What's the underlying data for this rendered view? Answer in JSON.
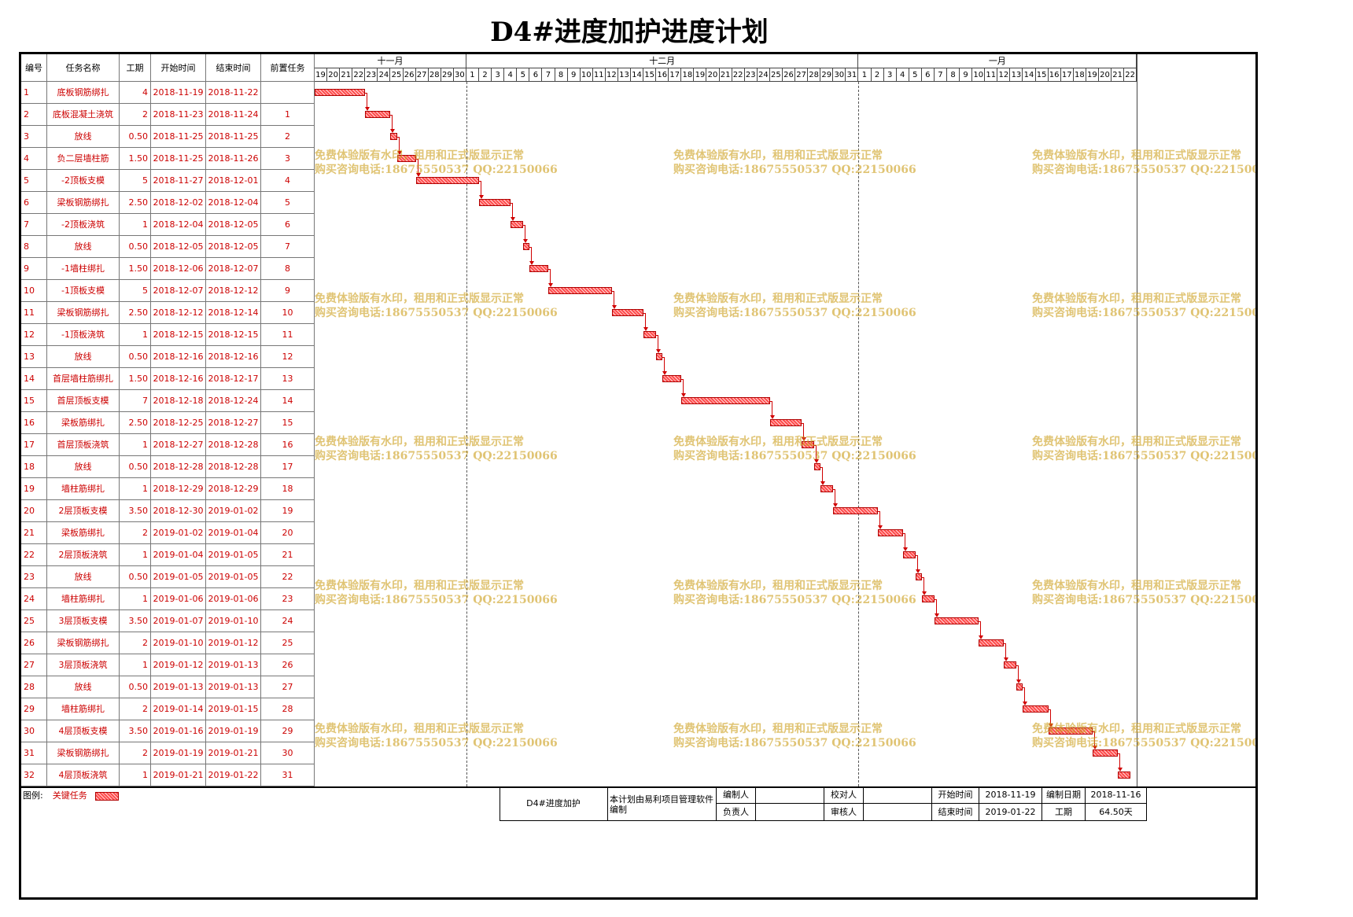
{
  "title": "D4#进度加护进度计划",
  "columns": [
    "编号",
    "任务名称",
    "工期",
    "开始时间",
    "结束时间",
    "前置任务"
  ],
  "months": [
    {
      "label": "十一月",
      "days": [
        "19",
        "20",
        "21",
        "22",
        "23",
        "24",
        "25",
        "26",
        "27",
        "28",
        "29",
        "30"
      ]
    },
    {
      "label": "十二月",
      "days": [
        "1",
        "2",
        "3",
        "4",
        "5",
        "6",
        "7",
        "8",
        "9",
        "10",
        "11",
        "12",
        "13",
        "14",
        "15",
        "16",
        "17",
        "18",
        "19",
        "20",
        "21",
        "22",
        "23",
        "24",
        "25",
        "26",
        "27",
        "28",
        "29",
        "30",
        "31"
      ]
    },
    {
      "label": "一月",
      "days": [
        "1",
        "2",
        "3",
        "4",
        "5",
        "6",
        "7",
        "8",
        "9",
        "10",
        "11",
        "12",
        "13",
        "14",
        "15",
        "16",
        "17",
        "18",
        "19",
        "20",
        "21",
        "22"
      ]
    }
  ],
  "tasks": [
    {
      "id": "1",
      "name": "底板钢筋绑扎",
      "duration": "4",
      "start": "2018-11-19",
      "end": "2018-11-22",
      "pred": ""
    },
    {
      "id": "2",
      "name": "底板混凝土浇筑",
      "duration": "2",
      "start": "2018-11-23",
      "end": "2018-11-24",
      "pred": "1"
    },
    {
      "id": "3",
      "name": "放线",
      "duration": "0.50",
      "start": "2018-11-25",
      "end": "2018-11-25",
      "pred": "2"
    },
    {
      "id": "4",
      "name": "负二层墙柱筋",
      "duration": "1.50",
      "start": "2018-11-25",
      "end": "2018-11-26",
      "pred": "3"
    },
    {
      "id": "5",
      "name": "-2顶板支模",
      "duration": "5",
      "start": "2018-11-27",
      "end": "2018-12-01",
      "pred": "4"
    },
    {
      "id": "6",
      "name": "梁板钢筋绑扎",
      "duration": "2.50",
      "start": "2018-12-02",
      "end": "2018-12-04",
      "pred": "5"
    },
    {
      "id": "7",
      "name": "-2顶板浇筑",
      "duration": "1",
      "start": "2018-12-04",
      "end": "2018-12-05",
      "pred": "6"
    },
    {
      "id": "8",
      "name": "放线",
      "duration": "0.50",
      "start": "2018-12-05",
      "end": "2018-12-05",
      "pred": "7"
    },
    {
      "id": "9",
      "name": "-1墙柱绑扎",
      "duration": "1.50",
      "start": "2018-12-06",
      "end": "2018-12-07",
      "pred": "8"
    },
    {
      "id": "10",
      "name": "-1顶板支模",
      "duration": "5",
      "start": "2018-12-07",
      "end": "2018-12-12",
      "pred": "9"
    },
    {
      "id": "11",
      "name": "梁板钢筋绑扎",
      "duration": "2.50",
      "start": "2018-12-12",
      "end": "2018-12-14",
      "pred": "10"
    },
    {
      "id": "12",
      "name": "-1顶板浇筑",
      "duration": "1",
      "start": "2018-12-15",
      "end": "2018-12-15",
      "pred": "11"
    },
    {
      "id": "13",
      "name": "放线",
      "duration": "0.50",
      "start": "2018-12-16",
      "end": "2018-12-16",
      "pred": "12"
    },
    {
      "id": "14",
      "name": "首层墙柱筋绑扎",
      "duration": "1.50",
      "start": "2018-12-16",
      "end": "2018-12-17",
      "pred": "13"
    },
    {
      "id": "15",
      "name": "首层顶板支模",
      "duration": "7",
      "start": "2018-12-18",
      "end": "2018-12-24",
      "pred": "14"
    },
    {
      "id": "16",
      "name": "梁板筋绑扎",
      "duration": "2.50",
      "start": "2018-12-25",
      "end": "2018-12-27",
      "pred": "15"
    },
    {
      "id": "17",
      "name": "首层顶板浇筑",
      "duration": "1",
      "start": "2018-12-27",
      "end": "2018-12-28",
      "pred": "16"
    },
    {
      "id": "18",
      "name": "放线",
      "duration": "0.50",
      "start": "2018-12-28",
      "end": "2018-12-28",
      "pred": "17"
    },
    {
      "id": "19",
      "name": "墙柱筋绑扎",
      "duration": "1",
      "start": "2018-12-29",
      "end": "2018-12-29",
      "pred": "18"
    },
    {
      "id": "20",
      "name": "2层顶板支模",
      "duration": "3.50",
      "start": "2018-12-30",
      "end": "2019-01-02",
      "pred": "19"
    },
    {
      "id": "21",
      "name": "梁板筋绑扎",
      "duration": "2",
      "start": "2019-01-02",
      "end": "2019-01-04",
      "pred": "20"
    },
    {
      "id": "22",
      "name": "2层顶板浇筑",
      "duration": "1",
      "start": "2019-01-04",
      "end": "2019-01-05",
      "pred": "21"
    },
    {
      "id": "23",
      "name": "放线",
      "duration": "0.50",
      "start": "2019-01-05",
      "end": "2019-01-05",
      "pred": "22"
    },
    {
      "id": "24",
      "name": "墙柱筋绑扎",
      "duration": "1",
      "start": "2019-01-06",
      "end": "2019-01-06",
      "pred": "23"
    },
    {
      "id": "25",
      "name": "3层顶板支模",
      "duration": "3.50",
      "start": "2019-01-07",
      "end": "2019-01-10",
      "pred": "24"
    },
    {
      "id": "26",
      "name": "梁板钢筋绑扎",
      "duration": "2",
      "start": "2019-01-10",
      "end": "2019-01-12",
      "pred": "25"
    },
    {
      "id": "27",
      "name": "3层顶板浇筑",
      "duration": "1",
      "start": "2019-01-12",
      "end": "2019-01-13",
      "pred": "26"
    },
    {
      "id": "28",
      "name": "放线",
      "duration": "0.50",
      "start": "2019-01-13",
      "end": "2019-01-13",
      "pred": "27"
    },
    {
      "id": "29",
      "name": "墙柱筋绑扎",
      "duration": "2",
      "start": "2019-01-14",
      "end": "2019-01-15",
      "pred": "28"
    },
    {
      "id": "30",
      "name": "4层顶板支模",
      "duration": "3.50",
      "start": "2019-01-16",
      "end": "2019-01-19",
      "pred": "29"
    },
    {
      "id": "31",
      "name": "梁板钢筋绑扎",
      "duration": "2",
      "start": "2019-01-19",
      "end": "2019-01-21",
      "pred": "30"
    },
    {
      "id": "32",
      "name": "4层顶板浇筑",
      "duration": "1",
      "start": "2019-01-21",
      "end": "2019-01-22",
      "pred": "31"
    }
  ],
  "bars": [
    {
      "s": 0,
      "d": 4
    },
    {
      "s": 4,
      "d": 2
    },
    {
      "s": 6,
      "d": 0.5
    },
    {
      "s": 6.5,
      "d": 1.5
    },
    {
      "s": 8,
      "d": 5
    },
    {
      "s": 13,
      "d": 2.5
    },
    {
      "s": 15.5,
      "d": 1
    },
    {
      "s": 16.5,
      "d": 0.5
    },
    {
      "s": 17,
      "d": 1.5
    },
    {
      "s": 18.5,
      "d": 5
    },
    {
      "s": 23.5,
      "d": 2.5
    },
    {
      "s": 26,
      "d": 1
    },
    {
      "s": 27,
      "d": 0.5
    },
    {
      "s": 27.5,
      "d": 1.5
    },
    {
      "s": 29,
      "d": 7
    },
    {
      "s": 36,
      "d": 2.5
    },
    {
      "s": 38.5,
      "d": 1
    },
    {
      "s": 39.5,
      "d": 0.5
    },
    {
      "s": 40,
      "d": 1
    },
    {
      "s": 41,
      "d": 3.5
    },
    {
      "s": 44.5,
      "d": 2
    },
    {
      "s": 46.5,
      "d": 1
    },
    {
      "s": 47.5,
      "d": 0.5
    },
    {
      "s": 48,
      "d": 1
    },
    {
      "s": 49,
      "d": 3.5
    },
    {
      "s": 52.5,
      "d": 2
    },
    {
      "s": 54.5,
      "d": 1
    },
    {
      "s": 55.5,
      "d": 0.5
    },
    {
      "s": 56,
      "d": 2
    },
    {
      "s": 58,
      "d": 3.5
    },
    {
      "s": 61.5,
      "d": 2
    },
    {
      "s": 63.5,
      "d": 1
    }
  ],
  "watermark": {
    "line1": "免费体验版有水印，租用和正式版显示正常",
    "line2": "购买咨询电话:18675550537 QQ:22150066"
  },
  "legend": {
    "label": "图例:",
    "item": "关键任务"
  },
  "footer": {
    "project": "D4#进度加护",
    "note": "本计划由易利项目管理软件编制",
    "compiled_by_label": "编制人",
    "compiled_by": "",
    "checked_by_label": "校对人",
    "checked_by": "",
    "responsible_label": "负责人",
    "responsible": "",
    "reviewed_by_label": "审核人",
    "reviewed_by": "",
    "start_label": "开始时间",
    "start": "2018-11-19",
    "end_label": "结束时间",
    "end": "2019-01-22",
    "compile_date_label": "编制日期",
    "compile_date": "2018-11-16",
    "duration_label": "工期",
    "duration": "64.50天"
  },
  "colors": {
    "task_text": "#cc0000",
    "critical_bar": "#ff4d4d",
    "link": "#d00000",
    "watermark": "#cda01e"
  }
}
